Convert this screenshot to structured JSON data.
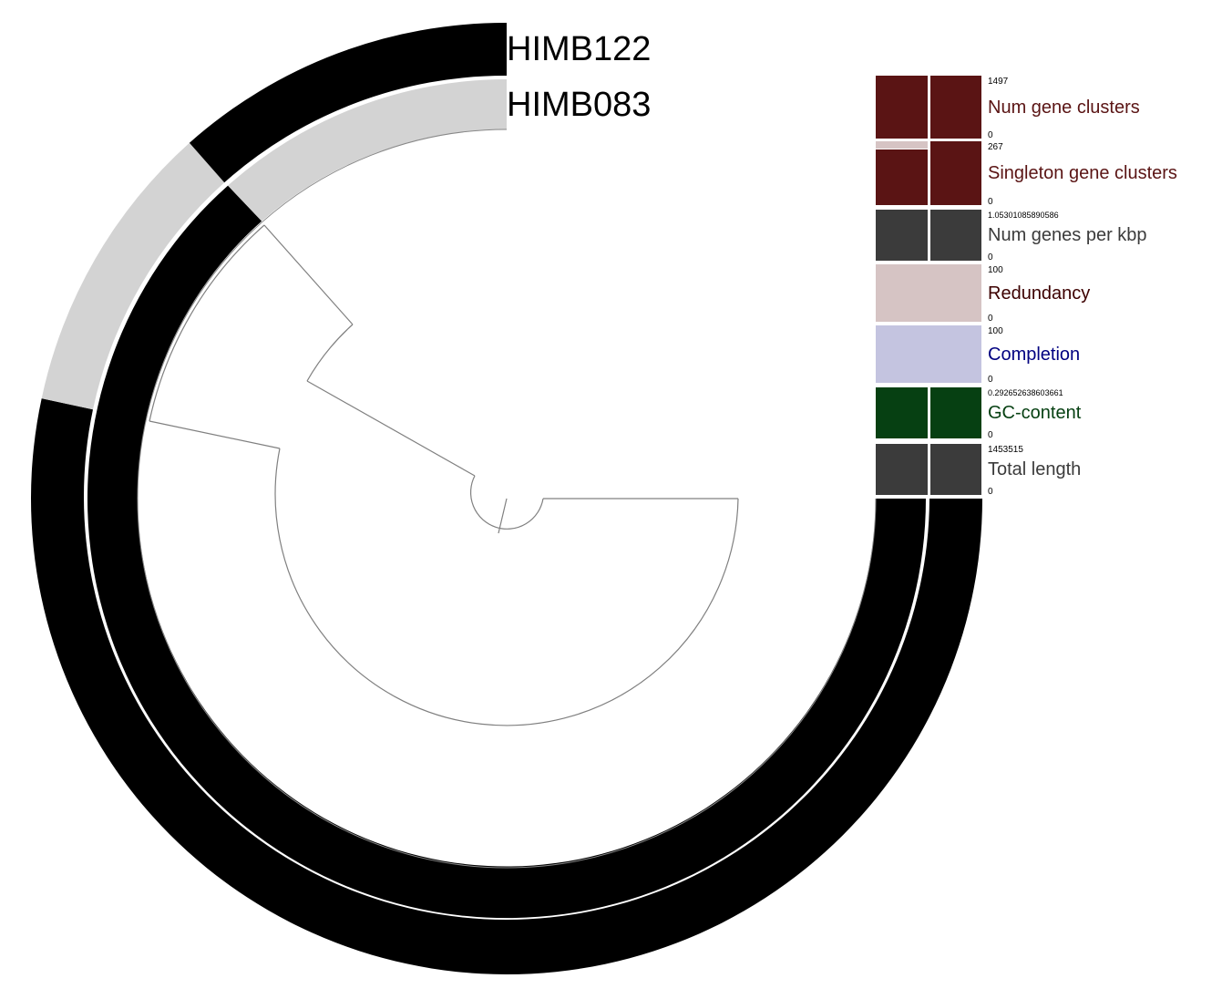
{
  "rings": {
    "outer": {
      "label": "HIMB122",
      "color_on": "#000000",
      "color_off": "#d3d3d3"
    },
    "inner": {
      "label": "HIMB083",
      "color_on": "#000000",
      "color_off": "#d3d3d3"
    }
  },
  "layers": [
    {
      "title": "Num gene clusters",
      "max": "1497",
      "min": "0",
      "color": "#5a1414",
      "title_color": "#5a1414",
      "bar": "split"
    },
    {
      "title": "Singleton gene clusters",
      "max": "267",
      "min": "0",
      "color": "#5a1414",
      "title_color": "#5a1414",
      "bar": "split-partial"
    },
    {
      "title": "Num genes per kbp",
      "max": "1.05301085890586",
      "min": "0",
      "color": "#3b3b3b",
      "title_color": "#3b3b3b",
      "bar": "split"
    },
    {
      "title": "Redundancy",
      "max": "100",
      "min": "0",
      "color": "#d6c4c4",
      "title_color": "#3c0000",
      "bar": "full"
    },
    {
      "title": "Completion",
      "max": "100",
      "min": "0",
      "color": "#c4c4e0",
      "title_color": "#000080",
      "bar": "full"
    },
    {
      "title": "GC-content",
      "max": "0.292652638603661",
      "min": "0",
      "color": "#064012",
      "title_color": "#064012",
      "bar": "split"
    },
    {
      "title": "Total length",
      "max": "1453515",
      "min": "0",
      "color": "#3b3b3b",
      "title_color": "#3b3b3b",
      "bar": "split"
    }
  ]
}
